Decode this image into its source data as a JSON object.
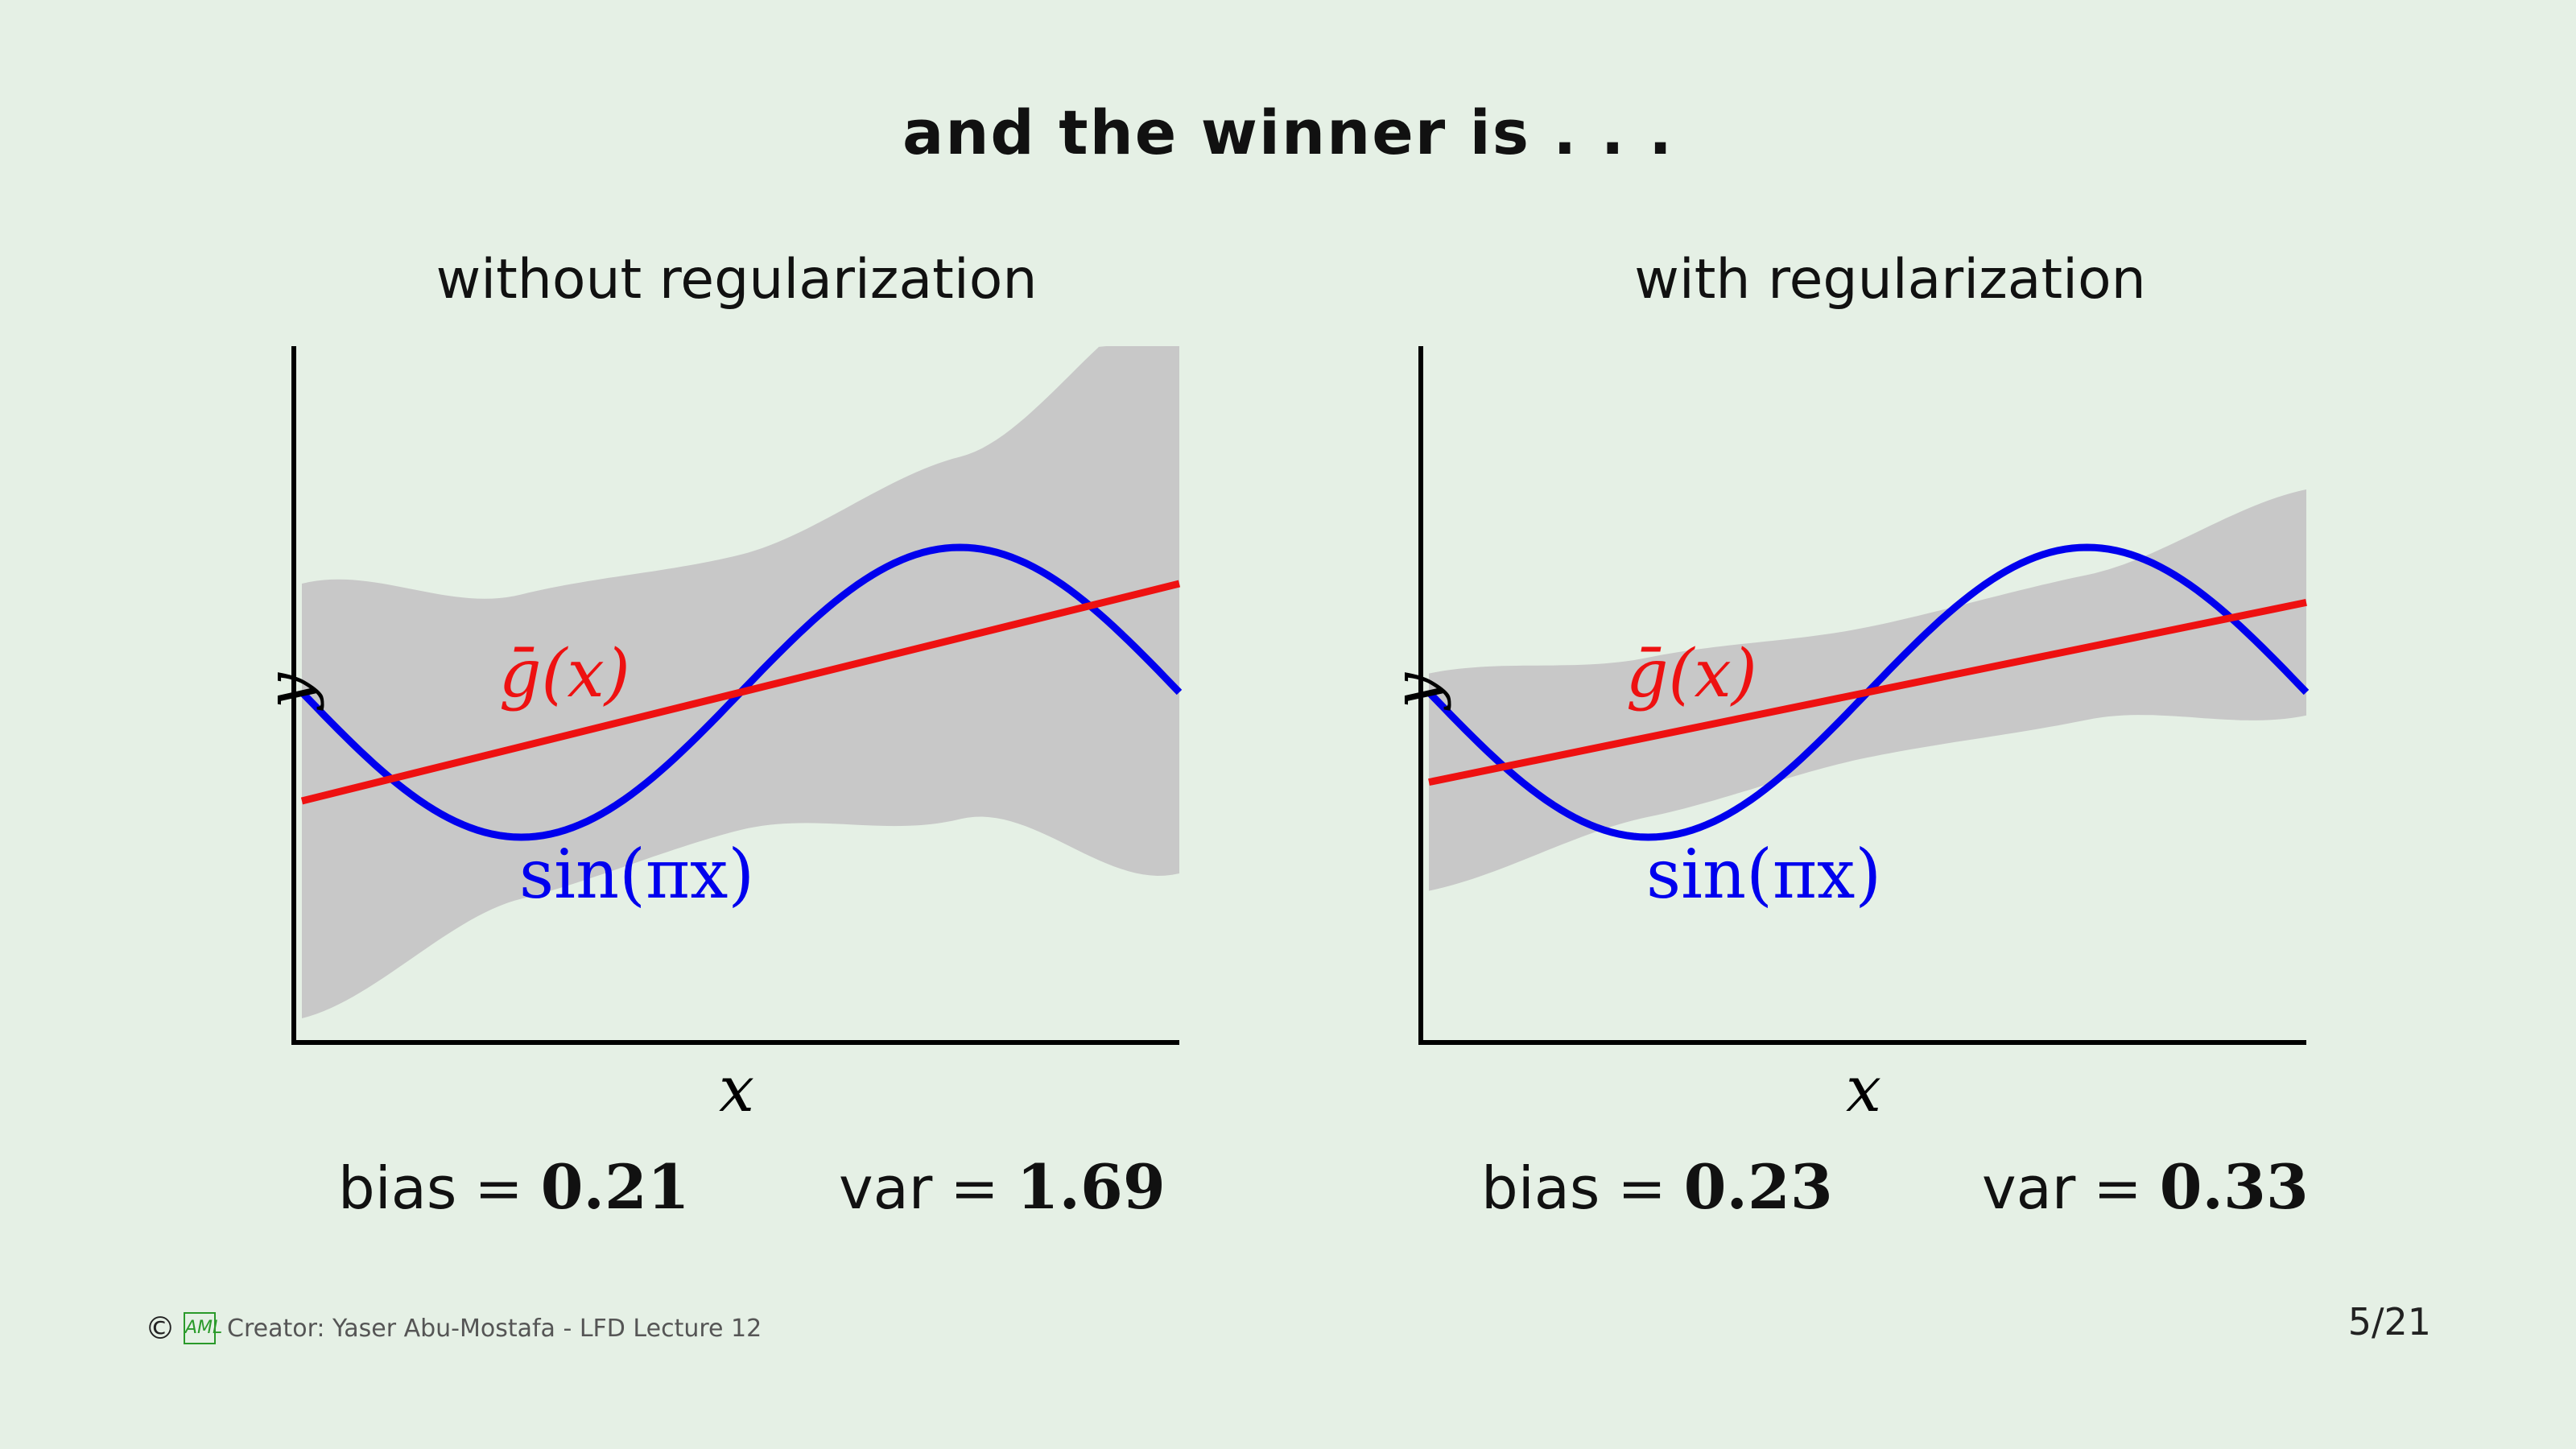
{
  "title": "and the winner is . . .",
  "panels": [
    {
      "heading": "without regularization",
      "ylabel": "y",
      "xlabel": "x",
      "gbar_label": "ḡ(x)",
      "target_label": "sin(πx)",
      "bias_label": "bias",
      "bias_value": "0.21",
      "var_label": "var",
      "var_value": "1.69"
    },
    {
      "heading": "with regularization",
      "ylabel": "y",
      "xlabel": "x",
      "gbar_label": "ḡ(x)",
      "target_label": "sin(πx)",
      "bias_label": "bias",
      "bias_value": "0.23",
      "var_label": "var",
      "var_value": "0.33"
    }
  ],
  "equals": "=",
  "footer": {
    "copyright_symbol": "©",
    "logo_text": "AML",
    "credit": "Creator: Yaser Abu-Mostafa - LFD Lecture 12"
  },
  "page_number": "5/21",
  "colors": {
    "target": "#0000ee",
    "gbar": "#ee1111",
    "band": "#c8c8c8",
    "axis": "#000000"
  },
  "chart_data": [
    {
      "type": "line",
      "xlim": [
        -1,
        1
      ],
      "series": [
        {
          "name": "sin(πx)",
          "x": [
            -1,
            -0.5,
            0,
            0.5,
            1
          ],
          "y": [
            0,
            -1,
            0,
            1,
            0
          ]
        },
        {
          "name": "ḡ(x)",
          "x": [
            -1,
            1
          ],
          "y": [
            -0.75,
            0.75
          ]
        }
      ],
      "band_halfwidth_at_x": {
        "x": [
          -1,
          -0.5,
          0,
          0.5,
          1
        ],
        "halfwidth": [
          1.5,
          1.05,
          0.95,
          1.25,
          2.0
        ]
      }
    },
    {
      "type": "line",
      "xlim": [
        -1,
        1
      ],
      "series": [
        {
          "name": "sin(πx)",
          "x": [
            -1,
            -0.5,
            0,
            0.5,
            1
          ],
          "y": [
            0,
            -1,
            0,
            1,
            0
          ]
        },
        {
          "name": "ḡ(x)",
          "x": [
            -1,
            1
          ],
          "y": [
            -0.62,
            0.62
          ]
        }
      ],
      "band_halfwidth_at_x": {
        "x": [
          -1,
          -0.5,
          0,
          0.5,
          1
        ],
        "halfwidth": [
          0.75,
          0.55,
          0.45,
          0.5,
          0.78
        ]
      }
    }
  ]
}
